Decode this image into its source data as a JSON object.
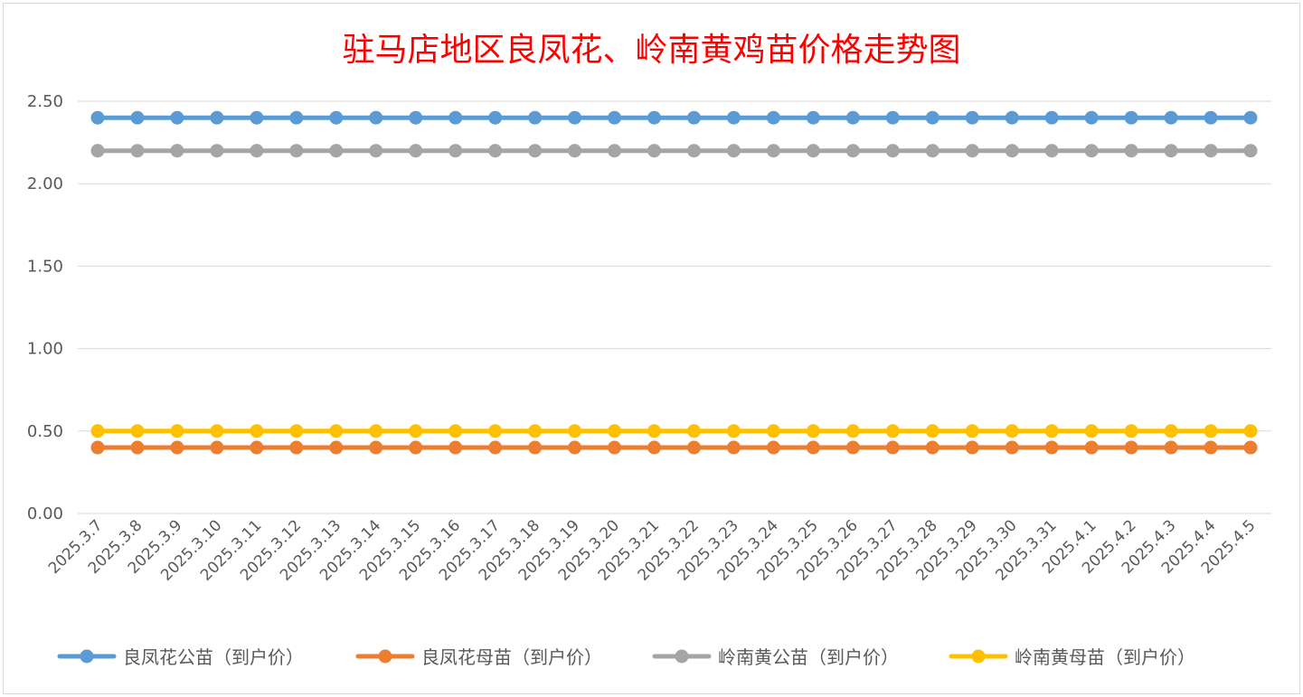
{
  "chart_data": {
    "type": "line",
    "title": "驻马店地区良凤花、岭南黄鸡苗价格走势图",
    "xlabel": "",
    "ylabel": "",
    "categories": [
      "2025.3.7",
      "2025.3.8",
      "2025.3.9",
      "2025.3.10",
      "2025.3.11",
      "2025.3.12",
      "2025.3.13",
      "2025.3.14",
      "2025.3.15",
      "2025.3.16",
      "2025.3.17",
      "2025.3.18",
      "2025.3.19",
      "2025.3.20",
      "2025.3.21",
      "2025.3.22",
      "2025.3.23",
      "2025.3.24",
      "2025.3.25",
      "2025.3.26",
      "2025.3.27",
      "2025.3.28",
      "2025.3.29",
      "2025.3.30",
      "2025.3.31",
      "2025.4.1",
      "2025.4.2",
      "2025.4.3",
      "2025.4.4",
      "2025.4.5"
    ],
    "ylim": [
      0,
      2.5
    ],
    "yticks": [
      "0.00",
      "0.50",
      "1.00",
      "1.50",
      "2.00",
      "2.50"
    ],
    "grid": true,
    "legend_position": "bottom",
    "series": [
      {
        "name": "良凤花公苗（到户价）",
        "color": "#5b9bd5",
        "values": [
          2.4,
          2.4,
          2.4,
          2.4,
          2.4,
          2.4,
          2.4,
          2.4,
          2.4,
          2.4,
          2.4,
          2.4,
          2.4,
          2.4,
          2.4,
          2.4,
          2.4,
          2.4,
          2.4,
          2.4,
          2.4,
          2.4,
          2.4,
          2.4,
          2.4,
          2.4,
          2.4,
          2.4,
          2.4,
          2.4
        ]
      },
      {
        "name": "良凤花母苗（到户价）",
        "color": "#ed7d31",
        "values": [
          0.4,
          0.4,
          0.4,
          0.4,
          0.4,
          0.4,
          0.4,
          0.4,
          0.4,
          0.4,
          0.4,
          0.4,
          0.4,
          0.4,
          0.4,
          0.4,
          0.4,
          0.4,
          0.4,
          0.4,
          0.4,
          0.4,
          0.4,
          0.4,
          0.4,
          0.4,
          0.4,
          0.4,
          0.4,
          0.4
        ]
      },
      {
        "name": "岭南黄公苗（到户价）",
        "color": "#a5a5a5",
        "values": [
          2.2,
          2.2,
          2.2,
          2.2,
          2.2,
          2.2,
          2.2,
          2.2,
          2.2,
          2.2,
          2.2,
          2.2,
          2.2,
          2.2,
          2.2,
          2.2,
          2.2,
          2.2,
          2.2,
          2.2,
          2.2,
          2.2,
          2.2,
          2.2,
          2.2,
          2.2,
          2.2,
          2.2,
          2.2,
          2.2
        ]
      },
      {
        "name": "岭南黄母苗（到户价）",
        "color": "#ffc000",
        "values": [
          0.5,
          0.5,
          0.5,
          0.5,
          0.5,
          0.5,
          0.5,
          0.5,
          0.5,
          0.5,
          0.5,
          0.5,
          0.5,
          0.5,
          0.5,
          0.5,
          0.5,
          0.5,
          0.5,
          0.5,
          0.5,
          0.5,
          0.5,
          0.5,
          0.5,
          0.5,
          0.5,
          0.5,
          0.5,
          0.5
        ]
      }
    ]
  }
}
